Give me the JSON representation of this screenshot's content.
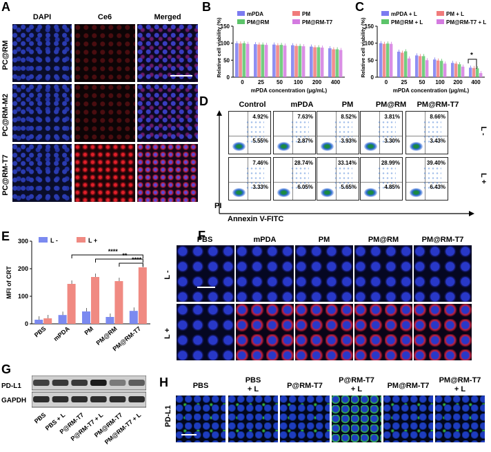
{
  "panels": {
    "A": "A",
    "B": "B",
    "C": "C",
    "D": "D",
    "E": "E",
    "F": "F",
    "G": "G",
    "H": "H"
  },
  "panelA": {
    "columns": [
      "DAPI",
      "Ce6",
      "Merged"
    ],
    "rows": [
      "PC@RM",
      "PC@RM-M2",
      "PC@RM-T7"
    ]
  },
  "panelB": {
    "legend": [
      "mPDA",
      "PM",
      "PM@RM",
      "PM@RM-T7"
    ],
    "colors": [
      "#7b7bf0",
      "#f07b7b",
      "#5cc46a",
      "#d47be0"
    ],
    "ylabel": "Relative cell viability (%)",
    "xlabel": "mPDA concentration  (μg/mL)",
    "yticks": [
      "0",
      "50",
      "100",
      "150"
    ],
    "xticks": [
      "0",
      "25",
      "50",
      "100",
      "200",
      "400"
    ]
  },
  "panelC": {
    "legend": [
      "mPDA + L",
      "PM + L",
      "PM@RM + L",
      "PM@RM-T7 + L"
    ],
    "ylabel": "Relative cell viability (%)",
    "xlabel": "mPDA concentration  (μg/mL)",
    "yticks": [
      "0",
      "50",
      "100",
      "150"
    ],
    "xticks": [
      "0",
      "25",
      "50",
      "100",
      "200",
      "400"
    ],
    "sig": "*"
  },
  "panelD": {
    "columns": [
      "Control",
      "mPDA",
      "PM",
      "PM@RM",
      "PM@RM-T7"
    ],
    "rowL_minus": "L -",
    "rowL_plus": "L +",
    "top_row_upper": [
      "4.92%",
      "7.63%",
      "8.52%",
      "3.81%",
      "8.66%"
    ],
    "top_row_lower": [
      "5.55%",
      "2.87%",
      "3.93%",
      "3.30%",
      "3.43%"
    ],
    "bottom_row_upper": [
      "7.46%",
      "28.74%",
      "33.14%",
      "28.99%",
      "39.40%"
    ],
    "bottom_row_lower": [
      "3.33%",
      "6.05%",
      "5.65%",
      "4.85%",
      "6.43%"
    ],
    "ylabel": "PI",
    "xlabel": "Annexin V-FITC"
  },
  "panelE": {
    "legend": [
      "L -",
      "L +"
    ],
    "colors": [
      "#7b8af0",
      "#f08a82"
    ],
    "ylabel": "MFI  of CRT",
    "yticks": [
      "0",
      "100",
      "200",
      "300"
    ],
    "categories": [
      "PBS",
      "mPDA",
      "PM",
      "PM@RM",
      "PM@RM-T7"
    ],
    "sig": [
      "****",
      "**",
      "****"
    ]
  },
  "panelF": {
    "columns": [
      "PBS",
      "mPDA",
      "PM",
      "PM@RM",
      "PM@RM-T7"
    ],
    "rows": [
      "L -",
      "L +"
    ]
  },
  "panelG": {
    "rows": [
      "PD-L1",
      "GAPDH"
    ],
    "lanes": [
      "PBS",
      "PBS + L",
      "P@RM-T7",
      "P@RM-T7 + L",
      "PM@RM-T7",
      "PM@RM-T7 + L"
    ]
  },
  "panelH": {
    "columns": [
      "PBS",
      "PBS\n+ L",
      "P@RM-T7",
      "P@RM-T7\n+ L",
      "PM@RM-T7",
      "PM@RM-T7\n+ L"
    ],
    "row": "PD-L1"
  },
  "chart_data": [
    {
      "type": "bar",
      "ylabel": "Relative cell viability (%)",
      "xlabel": "mPDA concentration  (μg/mL)",
      "ylim": [
        0,
        150
      ],
      "categories": [
        "0",
        "25",
        "50",
        "100",
        "200",
        "400"
      ],
      "series": [
        {
          "name": "mPDA",
          "values": [
            100,
            97,
            96,
            94,
            90,
            85
          ]
        },
        {
          "name": "PM",
          "values": [
            99,
            96,
            94,
            92,
            88,
            82
          ]
        },
        {
          "name": "PM@RM",
          "values": [
            100,
            96,
            95,
            92,
            88,
            82
          ]
        },
        {
          "name": "PM@RM-T7",
          "values": [
            98,
            95,
            93,
            91,
            87,
            80
          ]
        }
      ]
    },
    {
      "type": "bar",
      "ylabel": "Relative cell viability (%)",
      "xlabel": "mPDA concentration  (μg/mL)",
      "ylim": [
        0,
        150
      ],
      "categories": [
        "0",
        "25",
        "50",
        "100",
        "200",
        "400"
      ],
      "series": [
        {
          "name": "mPDA + L",
          "values": [
            100,
            75,
            64,
            52,
            42,
            28
          ]
        },
        {
          "name": "PM + L",
          "values": [
            98,
            72,
            62,
            49,
            40,
            27
          ]
        },
        {
          "name": "PM@RM + L",
          "values": [
            99,
            76,
            62,
            48,
            38,
            26
          ]
        },
        {
          "name": "PM@RM-T7 + L",
          "values": [
            98,
            55,
            50,
            40,
            31,
            12
          ]
        }
      ]
    },
    {
      "type": "bar",
      "ylabel": "MFI  of CRT",
      "ylim": [
        0,
        300
      ],
      "categories": [
        "PBS",
        "mPDA",
        "PM",
        "PM@RM",
        "PM@RM-T7"
      ],
      "series": [
        {
          "name": "L -",
          "values": [
            15,
            32,
            45,
            25,
            47
          ]
        },
        {
          "name": "L +",
          "values": [
            20,
            145,
            170,
            155,
            205
          ]
        }
      ]
    }
  ]
}
